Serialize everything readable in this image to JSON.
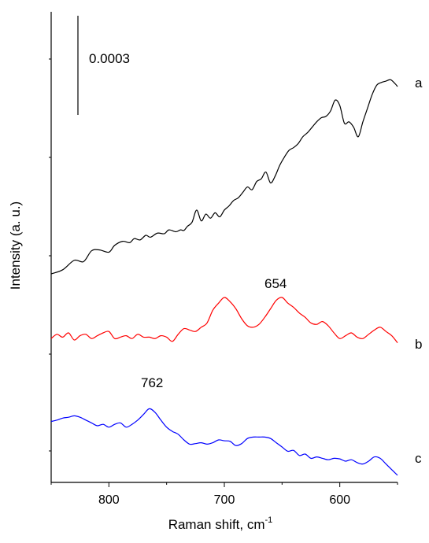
{
  "chart_data": {
    "type": "line",
    "title": "",
    "xlabel": "Raman shift, cm",
    "xlabel_sup": "-1",
    "ylabel": "Intensity (a. u.)",
    "x_reversed": true,
    "xlim": [
      850,
      550
    ],
    "x_ticks": [
      800,
      700,
      600
    ],
    "y_ticks_labeled": false,
    "grid": false,
    "legend": "none",
    "scale_bar_label": "0.0003",
    "annotations": [
      {
        "text": "654",
        "x": 654,
        "series": "b"
      },
      {
        "text": "762",
        "x": 762,
        "series": "c"
      }
    ],
    "series": [
      {
        "name": "a",
        "color": "#000000",
        "x": [
          850,
          840,
          830,
          822,
          815,
          808,
          800,
          795,
          788,
          782,
          778,
          773,
          768,
          764,
          758,
          752,
          748,
          742,
          738,
          735,
          732,
          728,
          724,
          720,
          716,
          712,
          708,
          704,
          700,
          696,
          692,
          688,
          684,
          680,
          676,
          672,
          668,
          664,
          660,
          656,
          652,
          648,
          644,
          640,
          636,
          632,
          628,
          624,
          620,
          616,
          612,
          608,
          604,
          600,
          596,
          592,
          588,
          584,
          580,
          576,
          572,
          568,
          564,
          560,
          556,
          552,
          550
        ],
        "y": [
          0.0,
          0.15,
          0.5,
          0.45,
          0.85,
          0.88,
          0.8,
          1.05,
          1.2,
          1.15,
          1.3,
          1.25,
          1.42,
          1.35,
          1.5,
          1.48,
          1.62,
          1.55,
          1.62,
          1.6,
          1.75,
          1.9,
          2.35,
          1.95,
          2.2,
          2.05,
          2.25,
          2.1,
          2.35,
          2.5,
          2.7,
          2.8,
          3.0,
          3.2,
          3.1,
          3.4,
          3.5,
          3.75,
          3.35,
          3.6,
          4.0,
          4.3,
          4.55,
          4.65,
          4.8,
          5.05,
          5.2,
          5.4,
          5.6,
          5.75,
          5.8,
          6.0,
          6.4,
          6.2,
          5.55,
          5.6,
          5.4,
          5.05,
          5.6,
          6.1,
          6.6,
          6.95,
          7.05,
          7.1,
          7.15,
          7.0,
          6.9
        ]
      },
      {
        "name": "b",
        "color": "#ff0000",
        "x": [
          850,
          845,
          840,
          835,
          830,
          825,
          820,
          815,
          810,
          805,
          800,
          795,
          790,
          785,
          780,
          775,
          770,
          765,
          760,
          755,
          750,
          745,
          740,
          735,
          730,
          725,
          720,
          715,
          710,
          705,
          700,
          695,
          690,
          685,
          680,
          675,
          670,
          665,
          660,
          655,
          650,
          645,
          640,
          635,
          630,
          625,
          620,
          615,
          610,
          605,
          600,
          595,
          590,
          585,
          580,
          575,
          570,
          565,
          560,
          555,
          550
        ],
        "y": [
          0.05,
          0.2,
          0.1,
          0.25,
          0.0,
          0.15,
          0.2,
          0.05,
          0.15,
          0.25,
          0.3,
          0.05,
          0.1,
          0.15,
          0.05,
          0.2,
          0.1,
          0.1,
          0.05,
          0.15,
          0.1,
          -0.05,
          0.2,
          0.4,
          0.35,
          0.3,
          0.45,
          0.6,
          1.05,
          1.3,
          1.5,
          1.35,
          1.1,
          0.75,
          0.5,
          0.45,
          0.55,
          0.8,
          1.1,
          1.4,
          1.5,
          1.3,
          1.15,
          0.95,
          0.8,
          0.6,
          0.55,
          0.65,
          0.5,
          0.25,
          0.05,
          0.15,
          0.25,
          0.1,
          0.05,
          0.2,
          0.35,
          0.45,
          0.3,
          0.15,
          -0.1
        ]
      },
      {
        "name": "c",
        "color": "#0000ff",
        "x": [
          850,
          845,
          840,
          835,
          830,
          825,
          820,
          815,
          810,
          805,
          800,
          795,
          790,
          785,
          780,
          775,
          770,
          765,
          760,
          755,
          750,
          745,
          740,
          735,
          730,
          725,
          720,
          715,
          710,
          705,
          700,
          695,
          690,
          685,
          680,
          675,
          670,
          665,
          660,
          655,
          650,
          645,
          640,
          635,
          630,
          625,
          620,
          615,
          610,
          605,
          600,
          595,
          590,
          585,
          580,
          575,
          570,
          565,
          560,
          555,
          550
        ],
        "y": [
          1.4,
          1.45,
          1.52,
          1.55,
          1.6,
          1.55,
          1.45,
          1.35,
          1.25,
          1.3,
          1.2,
          1.3,
          1.35,
          1.2,
          1.3,
          1.45,
          1.65,
          1.85,
          1.72,
          1.45,
          1.2,
          1.05,
          0.95,
          0.75,
          0.6,
          0.62,
          0.65,
          0.6,
          0.65,
          0.75,
          0.72,
          0.7,
          0.55,
          0.62,
          0.8,
          0.85,
          0.85,
          0.85,
          0.8,
          0.65,
          0.5,
          0.35,
          0.38,
          0.2,
          0.25,
          0.1,
          0.15,
          0.1,
          0.05,
          0.1,
          0.08,
          0.0,
          0.05,
          -0.05,
          -0.1,
          0.0,
          0.15,
          0.1,
          -0.1,
          -0.3,
          -0.5
        ]
      }
    ]
  }
}
